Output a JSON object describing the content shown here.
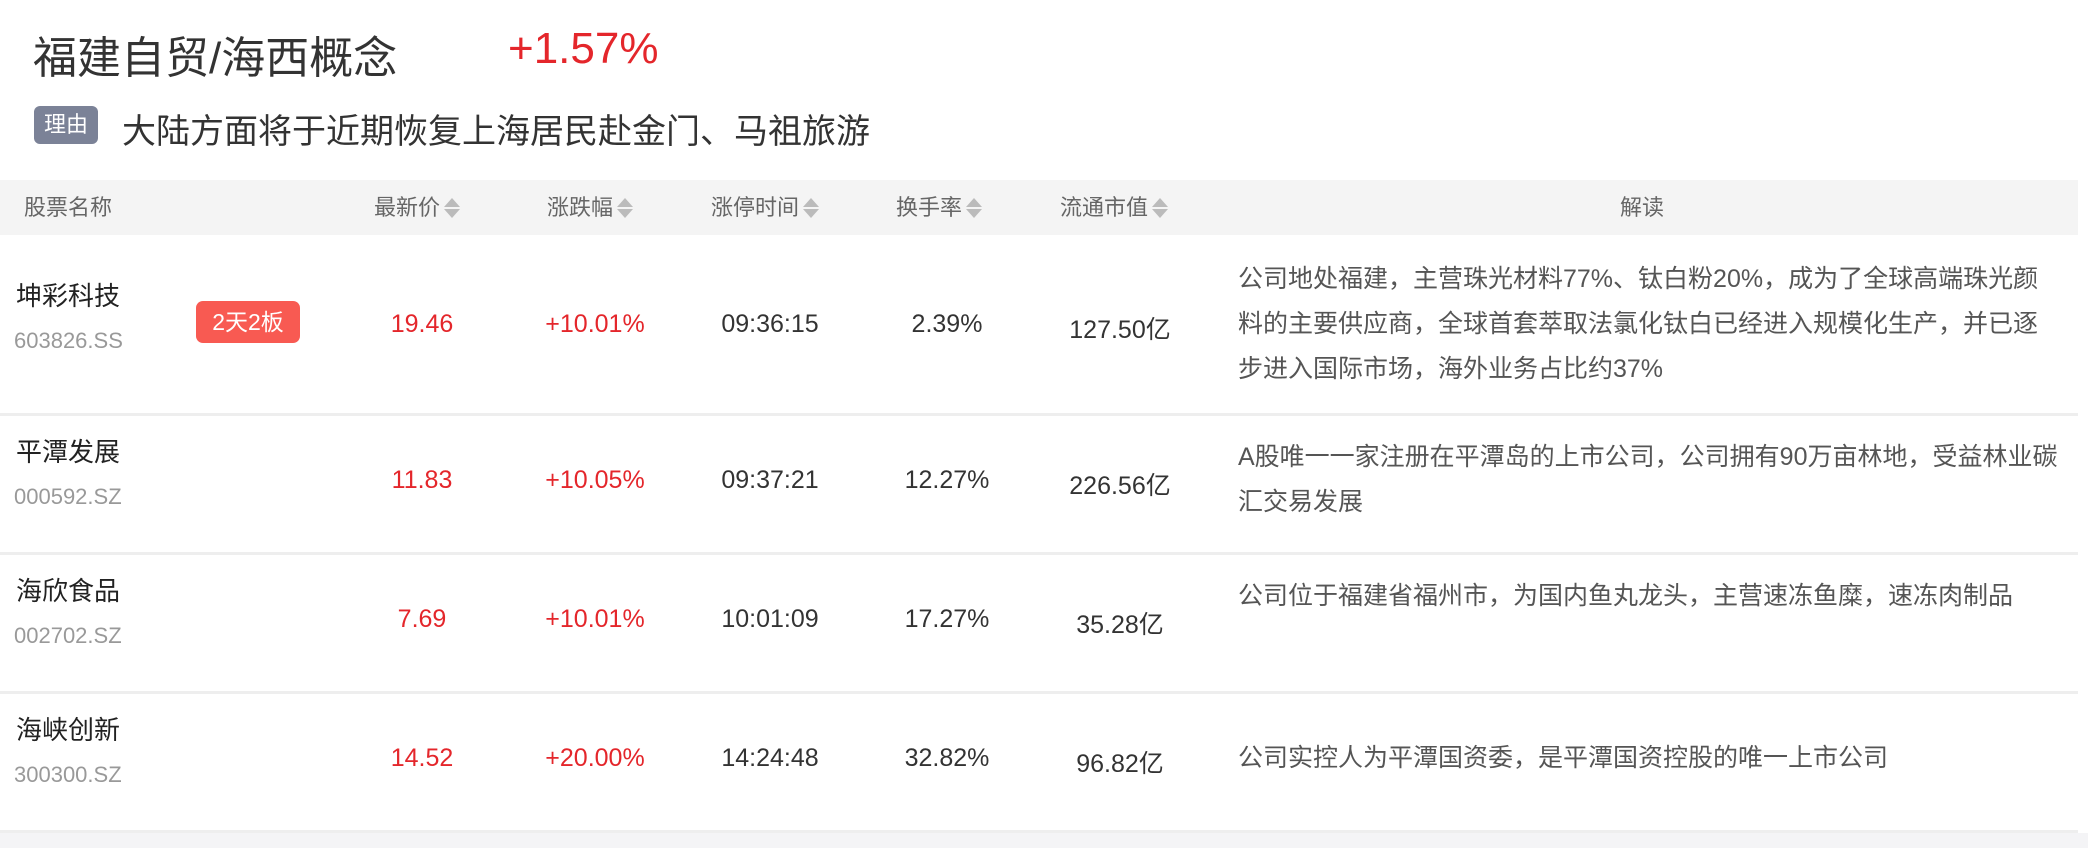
{
  "header": {
    "title": "福建自贸/海西概念",
    "change": "+1.57%",
    "reason_tag": "理由",
    "reason": "大陆方面将于近期恢复上海居民赴金门、马祖旅游"
  },
  "colors": {
    "up": "#e4262b",
    "badge": "#f85a52",
    "tag": "#7b8297"
  },
  "columns": [
    "股票名称",
    "最新价",
    "涨跌幅",
    "涨停时间",
    "换手率",
    "流通市值",
    "解读"
  ],
  "rows": [
    {
      "name": "坤彩科技",
      "code": "603826.SS",
      "badge": "2天2板",
      "price": "19.46",
      "change": "+10.01%",
      "time": "09:36:15",
      "turnover": "2.39%",
      "mktcap": "127.50亿",
      "desc": "公司地处福建，主营珠光材料77%、钛白粉20%，成为了全球高端珠光颜料的主要供应商，全球首套萃取法氯化钛白已经进入规模化生产，并已逐步进入国际市场，海外业务占比约37%"
    },
    {
      "name": "平潭发展",
      "code": "000592.SZ",
      "badge": null,
      "price": "11.83",
      "change": "+10.05%",
      "time": "09:37:21",
      "turnover": "12.27%",
      "mktcap": "226.56亿",
      "desc": "A股唯一一家注册在平潭岛的上市公司，公司拥有90万亩林地，受益林业碳汇交易发展"
    },
    {
      "name": "海欣食品",
      "code": "002702.SZ",
      "badge": null,
      "price": "7.69",
      "change": "+10.01%",
      "time": "10:01:09",
      "turnover": "17.27%",
      "mktcap": "35.28亿",
      "desc": "公司位于福建省福州市，为国内鱼丸龙头，主营速冻鱼糜，速冻肉制品"
    },
    {
      "name": "海峡创新",
      "code": "300300.SZ",
      "badge": null,
      "price": "14.52",
      "change": "+20.00%",
      "time": "14:24:48",
      "turnover": "32.82%",
      "mktcap": "96.82亿",
      "desc": "公司实控人为平潭国资委，是平潭国资控股的唯一上市公司"
    }
  ]
}
